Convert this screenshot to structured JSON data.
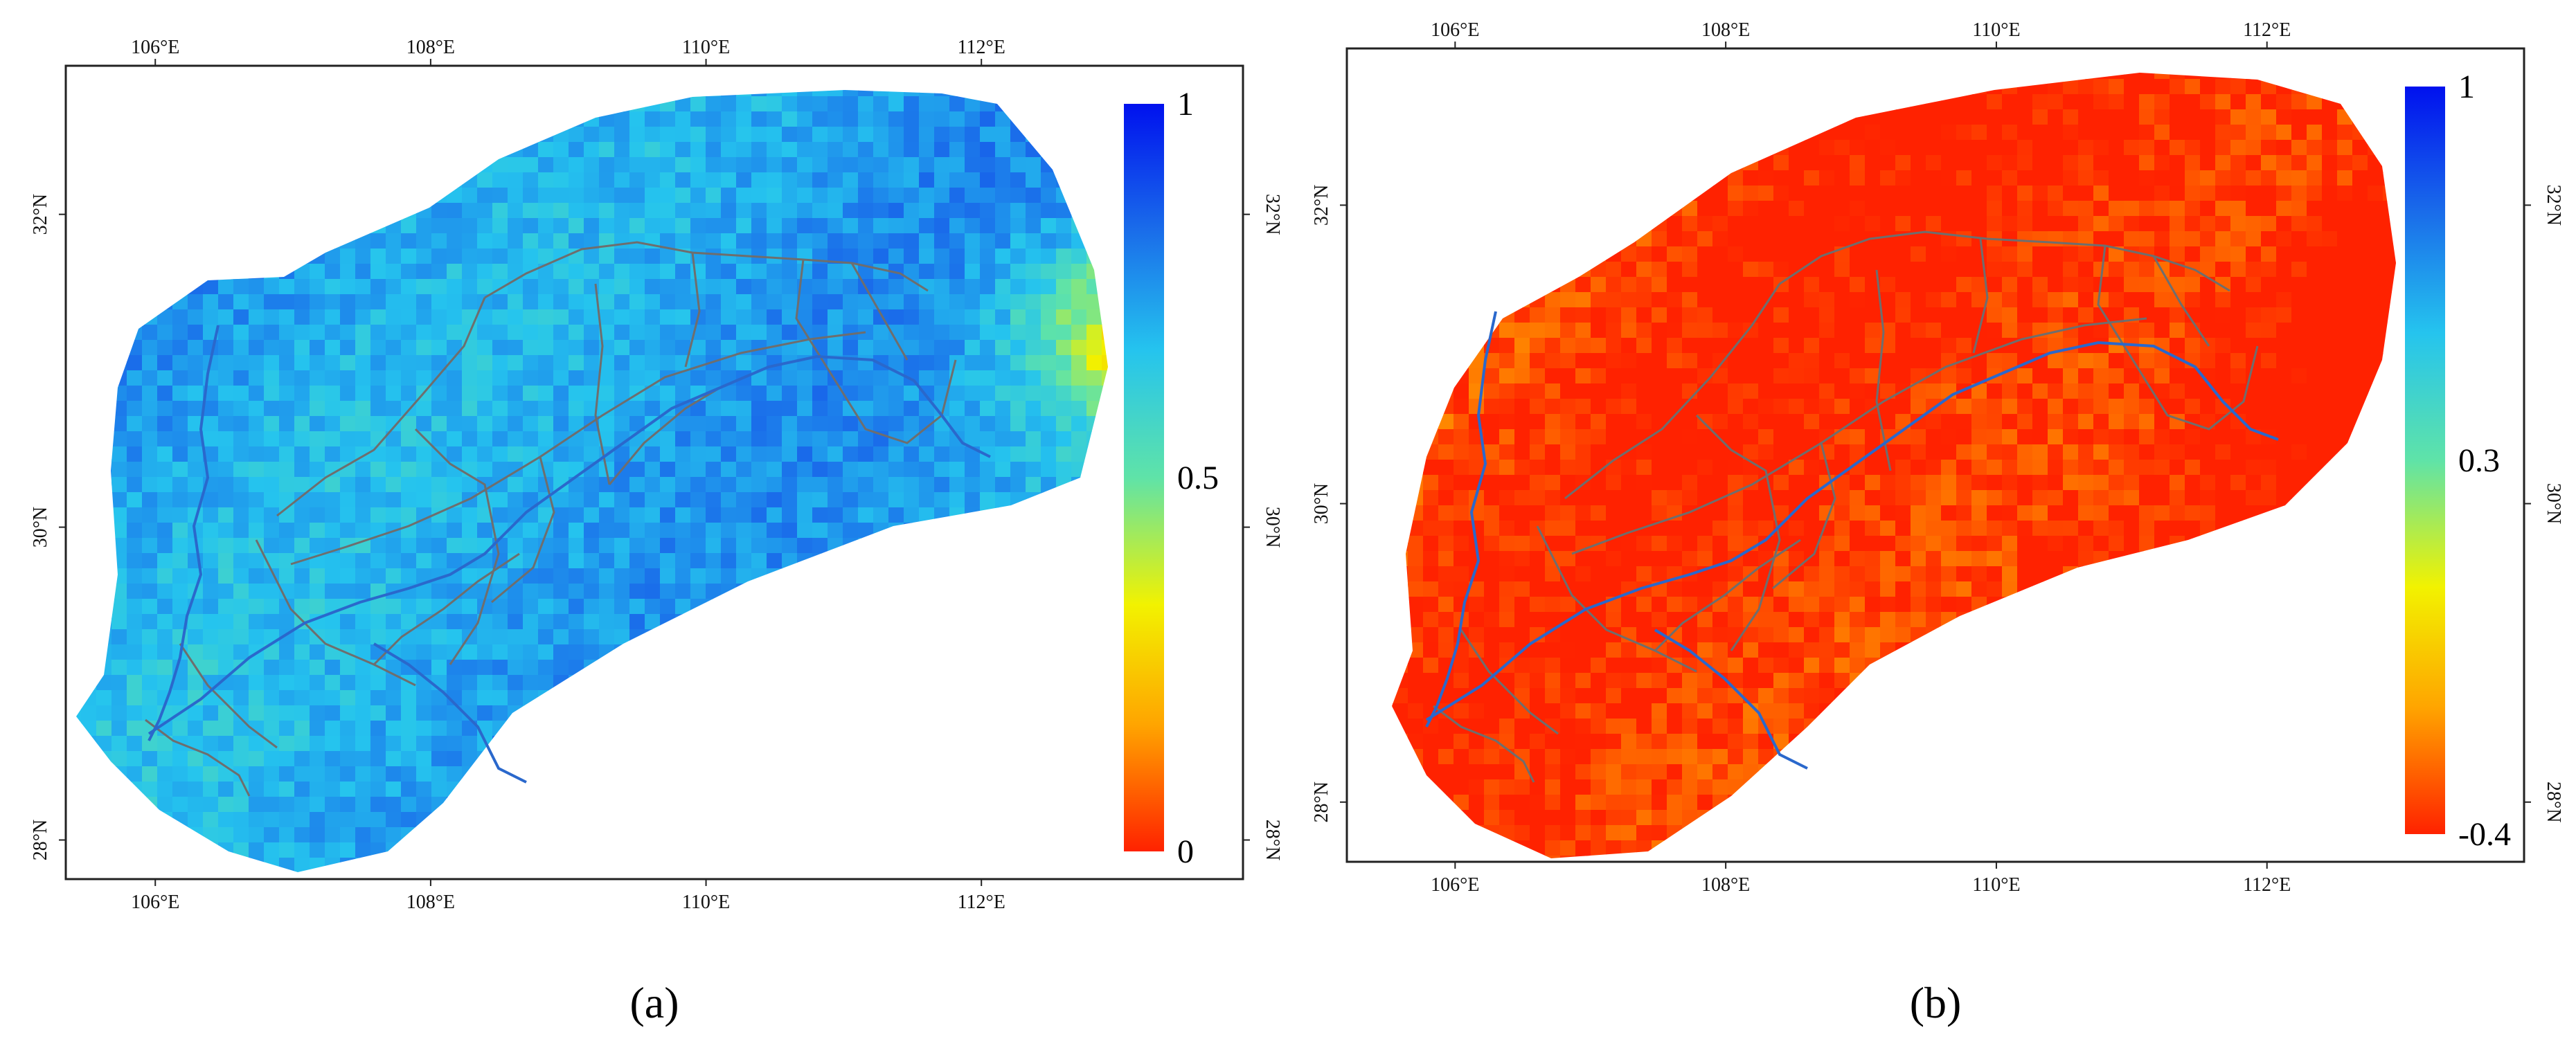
{
  "panels": [
    {
      "id": "a",
      "caption": "(a)",
      "lon_ticks": [
        "106°E",
        "108°E",
        "110°E",
        "112°E"
      ],
      "lat_ticks": [
        "28°N",
        "30°N",
        "32°N"
      ],
      "lon_tick_values": [
        106,
        108,
        110,
        112
      ],
      "lat_tick_values": [
        28,
        30,
        32
      ],
      "extent": {
        "lon": [
          105.35,
          113.9
        ],
        "lat": [
          27.75,
          32.95
        ]
      },
      "colorbar": {
        "labels": [
          "1",
          "0.5",
          "0"
        ],
        "label_values": [
          1,
          0.5,
          0
        ],
        "range": [
          0,
          1
        ],
        "colors": [
          "#0011ee",
          "#1a6dea",
          "#25c4ee",
          "#5fe3a8",
          "#f2f200",
          "#ffa500",
          "#ff2200"
        ]
      },
      "field": {
        "base": 0.74,
        "west_bias": 0.0,
        "east_anomaly": 0.45
      }
    },
    {
      "id": "b",
      "caption": "(b)",
      "lon_ticks": [
        "106°E",
        "108°E",
        "110°E",
        "112°E"
      ],
      "lat_ticks": [
        "28°N",
        "30°N",
        "32°N"
      ],
      "lon_tick_values": [
        106,
        108,
        110,
        112
      ],
      "lat_tick_values": [
        28,
        30,
        32
      ],
      "extent": {
        "lon": [
          105.2,
          113.9
        ],
        "lat": [
          27.6,
          33.05
        ]
      },
      "colorbar": {
        "labels": [
          "1",
          "0.3",
          "-0.4"
        ],
        "label_values": [
          1,
          0.3,
          -0.4
        ],
        "range": [
          -0.4,
          1
        ],
        "colors": [
          "#0011ee",
          "#1a6dea",
          "#25c4ee",
          "#5fe3a8",
          "#f2f200",
          "#ffa500",
          "#ff2200"
        ]
      },
      "field": {
        "base": 0.02,
        "west_bias": 0.12,
        "east_anomaly": 0.18
      }
    }
  ]
}
